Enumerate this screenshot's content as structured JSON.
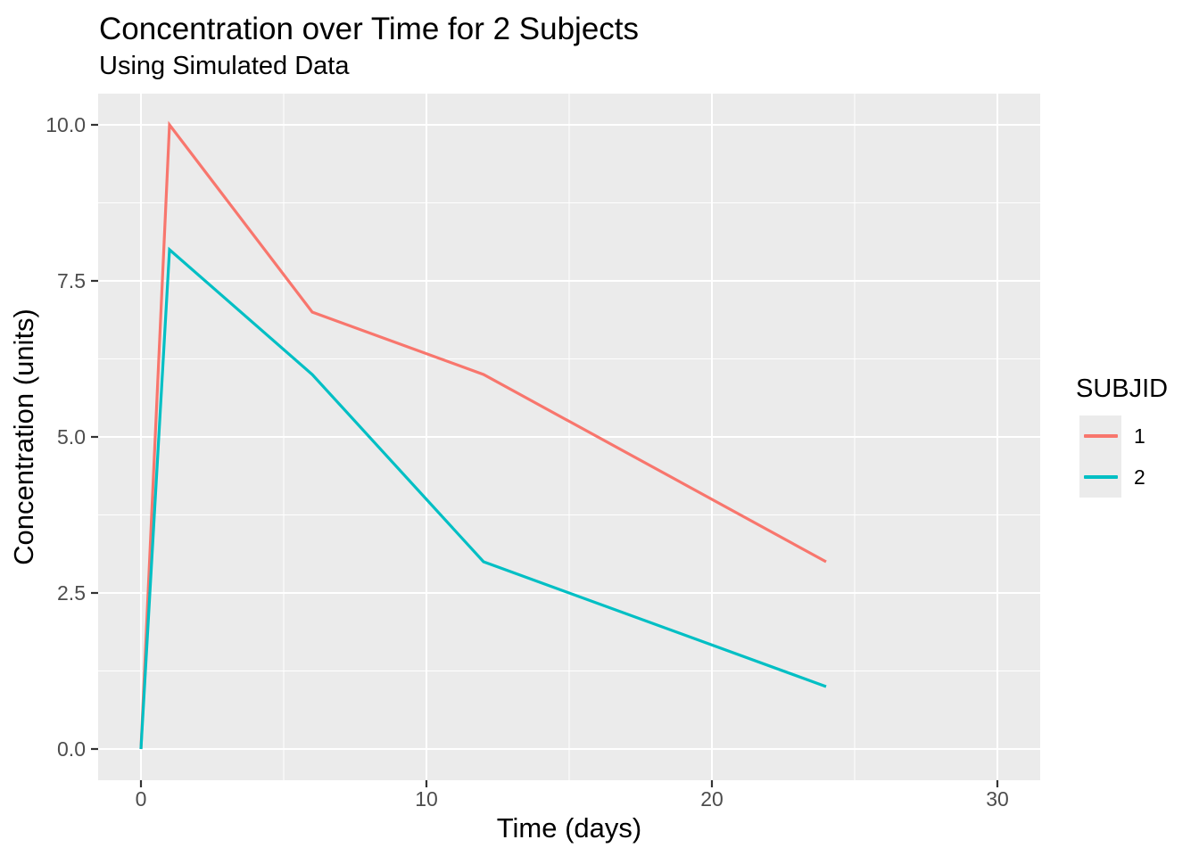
{
  "chart_data": {
    "type": "line",
    "title": "Concentration over Time for 2 Subjects",
    "subtitle": "Using Simulated Data",
    "xlabel": "Time (days)",
    "ylabel": "Concentration (units)",
    "x": [
      0,
      1,
      6,
      12,
      24
    ],
    "series": [
      {
        "name": "1",
        "color": "#F8766D",
        "values": [
          0,
          10,
          7,
          6,
          3
        ]
      },
      {
        "name": "2",
        "color": "#00BFC4",
        "values": [
          0,
          8,
          6,
          3,
          1
        ]
      }
    ],
    "x_axis": {
      "ticks": [
        0,
        10,
        20,
        30
      ],
      "tick_labels": [
        "0",
        "10",
        "20",
        "30"
      ],
      "minor_ticks": [
        5,
        15,
        25
      ],
      "domain": [
        -1.5,
        31.5
      ]
    },
    "y_axis": {
      "ticks": [
        0,
        2.5,
        5,
        7.5,
        10
      ],
      "tick_labels": [
        "0.0",
        "2.5",
        "5.0",
        "7.5",
        "10.0"
      ],
      "minor_ticks": [
        1.25,
        3.75,
        6.25,
        8.75
      ],
      "domain": [
        -0.5,
        10.5
      ]
    },
    "legend": {
      "title": "SUBJID",
      "position": "right",
      "entries": [
        {
          "label": "1",
          "color": "#F8766D"
        },
        {
          "label": "2",
          "color": "#00BFC4"
        }
      ]
    },
    "style": {
      "panel_bg": "#EBEBEB",
      "grid_color": "#FFFFFF",
      "grid": "on",
      "tick_label_color": "#4D4D4D",
      "tick_mark_color": "#333333",
      "line_width": 3.2
    }
  }
}
